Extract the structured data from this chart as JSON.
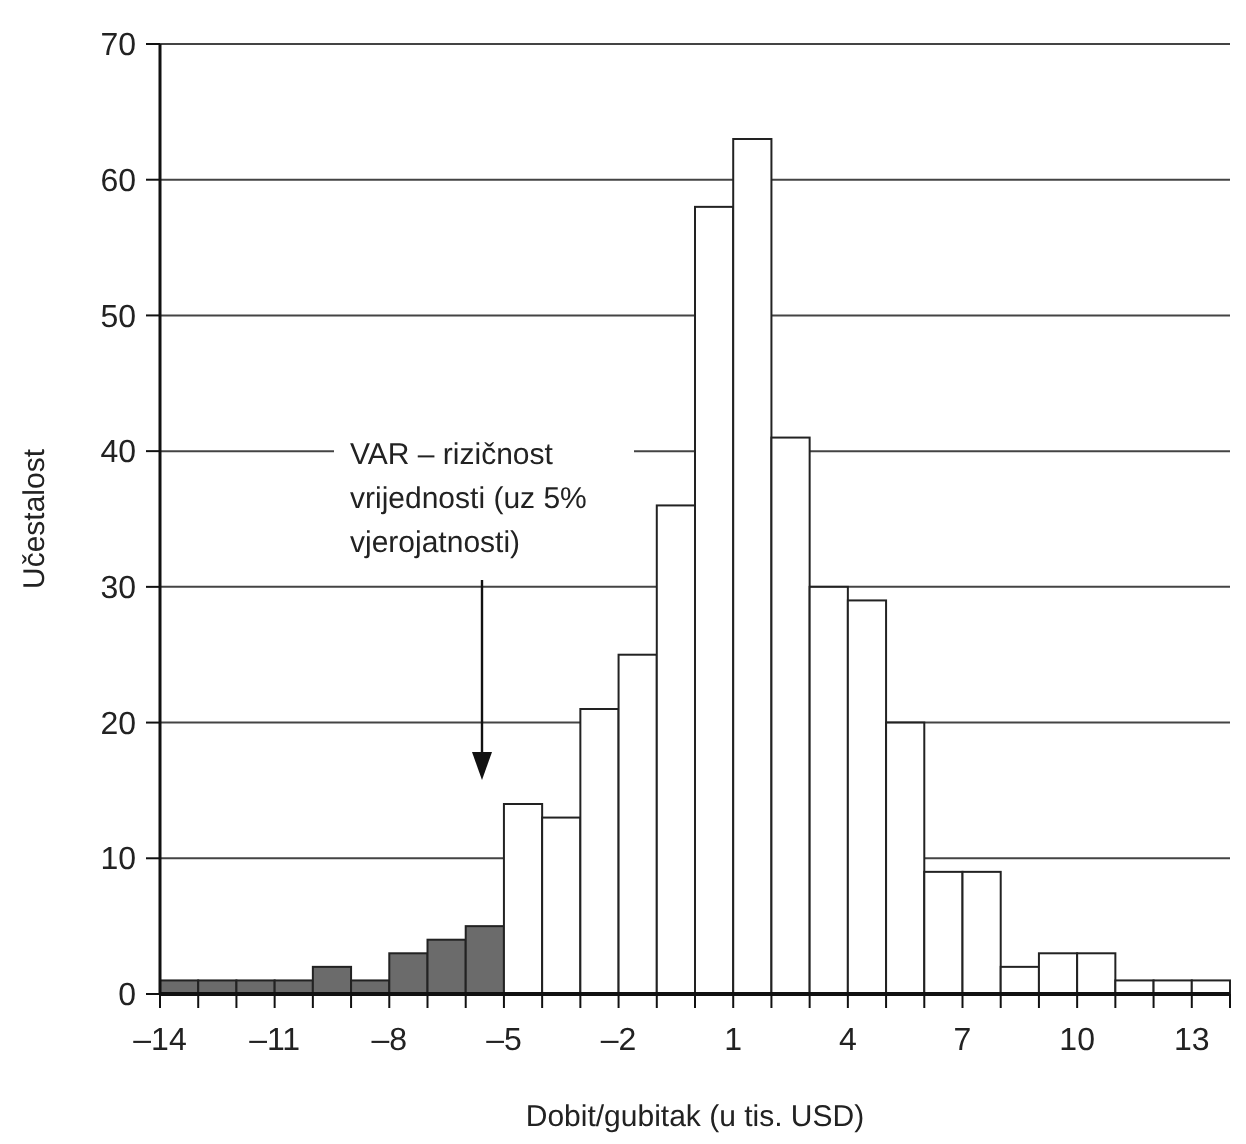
{
  "chart_data": {
    "type": "histogram",
    "xlabel": "Dobit/gubitak (u tis. USD)",
    "ylabel": "Učestalost",
    "bins": [
      -14,
      -13,
      -12,
      -11,
      -10,
      -9,
      -8,
      -7,
      -6,
      -5,
      -4,
      -3,
      -2,
      -1,
      0,
      1,
      2,
      3,
      4,
      5,
      6,
      7,
      8,
      9,
      10,
      11,
      12,
      13,
      14
    ],
    "values": [
      1,
      1,
      1,
      1,
      2,
      1,
      3,
      4,
      5,
      14,
      13,
      21,
      25,
      36,
      58,
      63,
      41,
      30,
      29,
      20,
      9,
      9,
      2,
      3,
      3,
      1,
      1,
      1
    ],
    "colors": [
      "#6b6b6b",
      "#6b6b6b",
      "#6b6b6b",
      "#6b6b6b",
      "#6b6b6b",
      "#6b6b6b",
      "#6b6b6b",
      "#6b6b6b",
      "#6b6b6b",
      "#ffffff",
      "#ffffff",
      "#ffffff",
      "#ffffff",
      "#ffffff",
      "#ffffff",
      "#ffffff",
      "#ffffff",
      "#ffffff",
      "#ffffff",
      "#ffffff",
      "#ffffff",
      "#ffffff",
      "#ffffff",
      "#ffffff",
      "#ffffff",
      "#ffffff",
      "#ffffff",
      "#ffffff"
    ],
    "xlim": [
      -14,
      14
    ],
    "xticks": [
      {
        "value": -14,
        "label": "–14"
      },
      {
        "value": -13,
        "label": null
      },
      {
        "value": -12,
        "label": null
      },
      {
        "value": -11,
        "label": "–11"
      },
      {
        "value": -10,
        "label": null
      },
      {
        "value": -9,
        "label": null
      },
      {
        "value": -8,
        "label": "–8"
      },
      {
        "value": -7,
        "label": null
      },
      {
        "value": -6,
        "label": null
      },
      {
        "value": -5,
        "label": "–5"
      },
      {
        "value": -4,
        "label": null
      },
      {
        "value": -3,
        "label": null
      },
      {
        "value": -2,
        "label": "–2"
      },
      {
        "value": -1,
        "label": null
      },
      {
        "value": 0,
        "label": null
      },
      1,
      {
        "value": 2,
        "label": null
      },
      {
        "value": 3,
        "label": null
      },
      4,
      {
        "value": 5,
        "label": null
      },
      {
        "value": 6,
        "label": null
      },
      7,
      {
        "value": 8,
        "label": null
      },
      {
        "value": 9,
        "label": null
      },
      10,
      {
        "value": 11,
        "label": null
      },
      {
        "value": 12,
        "label": null
      },
      13,
      {
        "value": 14,
        "label": null
      }
    ],
    "ylim": [
      0,
      70
    ],
    "yticks": [
      0,
      10,
      20,
      30,
      40,
      50,
      60,
      70
    ],
    "grid": "y",
    "annotations": [
      "VAR – rizičnost vrijednosti (uz 5% vjerojatnosti)"
    ]
  }
}
